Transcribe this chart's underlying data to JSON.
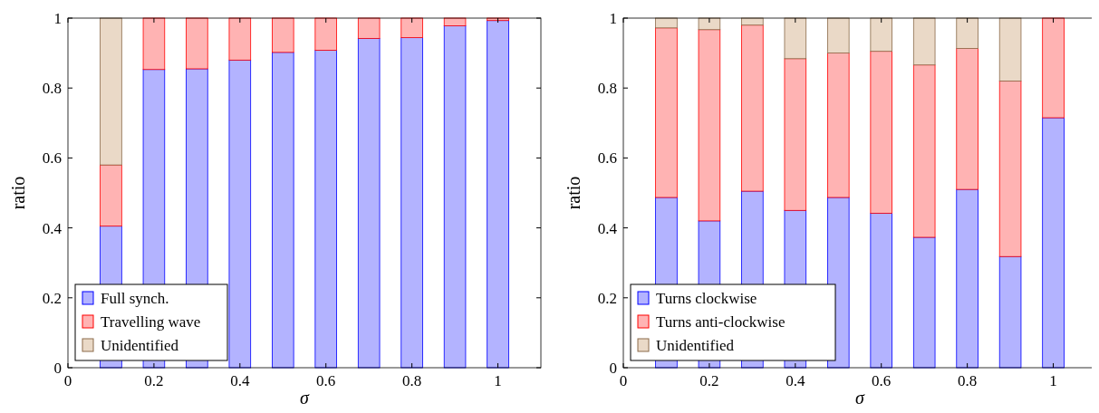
{
  "chart_data": [
    {
      "type": "bar",
      "stacked": true,
      "xlabel": "σ",
      "ylabel": "ratio",
      "x": [
        0.1,
        0.2,
        0.3,
        0.4,
        0.5,
        0.6,
        0.7,
        0.8,
        0.9,
        1.0
      ],
      "xlim": [
        0,
        1.1
      ],
      "xticks": [
        0,
        0.2,
        0.4,
        0.6,
        0.8,
        1
      ],
      "ylim": [
        0,
        1
      ],
      "yticks": [
        0,
        0.2,
        0.4,
        0.6,
        0.8,
        1
      ],
      "grid": false,
      "legend": "bottom left",
      "series": [
        {
          "name": "Full synch.",
          "color": "#b3b3ff",
          "values": [
            0.405,
            0.853,
            0.855,
            0.88,
            0.902,
            0.908,
            0.942,
            0.944,
            0.978,
            0.993
          ]
        },
        {
          "name": "Travelling wave",
          "color": "#ffb3b3",
          "values": [
            0.175,
            0.147,
            0.145,
            0.12,
            0.098,
            0.092,
            0.058,
            0.056,
            0.022,
            0.007
          ]
        },
        {
          "name": "Unidentified",
          "color": "#ead9c7",
          "values": [
            0.42,
            0,
            0,
            0,
            0,
            0,
            0,
            0,
            0,
            0
          ]
        }
      ]
    },
    {
      "type": "bar",
      "stacked": true,
      "xlabel": "σ",
      "ylabel": "ratio",
      "x": [
        0.1,
        0.2,
        0.3,
        0.4,
        0.5,
        0.6,
        0.7,
        0.8,
        0.9,
        1.0
      ],
      "xlim": [
        0,
        1.1
      ],
      "xticks": [
        0,
        0.2,
        0.4,
        0.6,
        0.8,
        1
      ],
      "ylim": [
        0,
        1
      ],
      "yticks": [
        0,
        0.2,
        0.4,
        0.6,
        0.8,
        1
      ],
      "grid": false,
      "legend": "bottom left",
      "series": [
        {
          "name": "Turns clockwise",
          "color": "#b3b3ff",
          "values": [
            0.487,
            0.42,
            0.505,
            0.45,
            0.487,
            0.442,
            0.373,
            0.51,
            0.318,
            0.715
          ]
        },
        {
          "name": "Turns anti-clockwise",
          "color": "#ffb3b3",
          "values": [
            0.485,
            0.547,
            0.475,
            0.434,
            0.413,
            0.463,
            0.493,
            0.403,
            0.502,
            0.285
          ]
        },
        {
          "name": "Unidentified",
          "color": "#ead9c7",
          "values": [
            0.028,
            0.033,
            0.02,
            0.116,
            0.1,
            0.095,
            0.134,
            0.087,
            0.18,
            0
          ]
        }
      ]
    }
  ]
}
